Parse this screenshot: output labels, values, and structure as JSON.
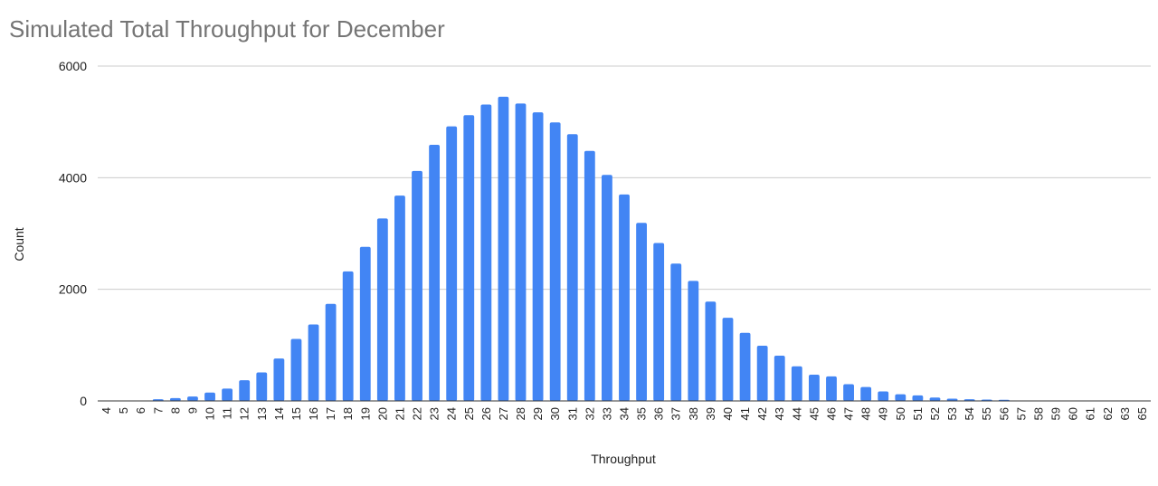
{
  "chart_data": {
    "type": "bar",
    "title": "Simulated Total Throughput for December",
    "xlabel": "Throughput",
    "ylabel": "Count",
    "ylim": [
      0,
      6000
    ],
    "yticks": [
      0,
      2000,
      4000,
      6000
    ],
    "grid": true,
    "legend": "none",
    "bar_color": "#4285f4",
    "grid_color": "#cccccc",
    "axis_color": "#333333",
    "categories": [
      "4",
      "5",
      "6",
      "7",
      "8",
      "9",
      "10",
      "11",
      "12",
      "13",
      "14",
      "15",
      "16",
      "17",
      "18",
      "19",
      "20",
      "21",
      "22",
      "23",
      "24",
      "25",
      "26",
      "27",
      "28",
      "29",
      "30",
      "31",
      "32",
      "33",
      "34",
      "35",
      "36",
      "37",
      "38",
      "39",
      "40",
      "41",
      "42",
      "43",
      "44",
      "45",
      "46",
      "47",
      "48",
      "49",
      "50",
      "51",
      "52",
      "53",
      "54",
      "55",
      "56",
      "57",
      "58",
      "59",
      "60",
      "61",
      "62",
      "63",
      "65"
    ],
    "values": [
      0,
      0,
      5,
      30,
      50,
      80,
      150,
      220,
      370,
      510,
      760,
      1110,
      1370,
      1740,
      2320,
      2760,
      3270,
      3680,
      4120,
      4590,
      4920,
      5120,
      5310,
      5450,
      5330,
      5170,
      4990,
      4780,
      4480,
      4050,
      3700,
      3190,
      2830,
      2460,
      2150,
      1780,
      1490,
      1220,
      990,
      810,
      620,
      470,
      440,
      300,
      250,
      170,
      120,
      100,
      60,
      40,
      30,
      25,
      20,
      5,
      2,
      1,
      0,
      0,
      0,
      0,
      0
    ]
  }
}
